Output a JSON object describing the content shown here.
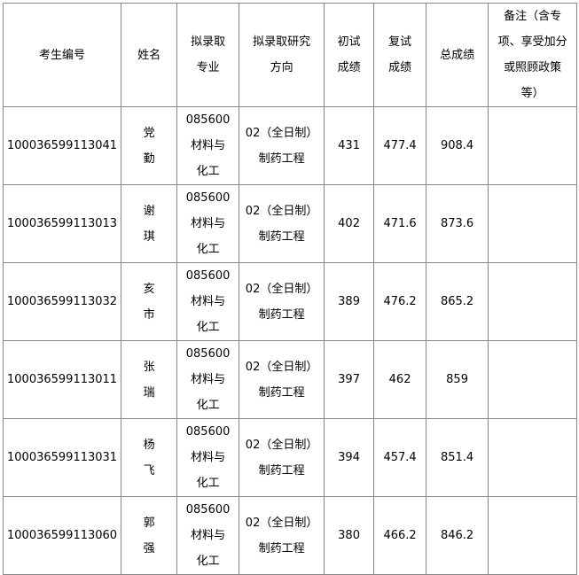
{
  "headers": [
    "考生编号",
    "姓名",
    "拟录取专业",
    "拟录取研究方向",
    "初试成绩",
    "复试成绩",
    "总成绩",
    "备注（含专项、享受加分或照顾政策等）"
  ],
  "headers_display": [
    "考生编号",
    "姓名",
    "拟录取\n专业",
    "拟录取研究\n方向",
    "初试\n成绩",
    "复试\n成绩",
    "总成绩",
    "备注（含专\n项、享受加分\n或照顾政策\n等）"
  ],
  "rows": [
    {
      "id": "100036599113041",
      "name": "党勤",
      "major": "085600\n材料与\n化工",
      "direction": "02（全日制）\n制药工程",
      "prelim": "431",
      "retest": "477.4",
      "total": "908.4",
      "note": ""
    },
    {
      "id": "100036599113013",
      "name": "谢琪",
      "major": "085600\n材料与\n化工",
      "direction": "02（全日制）\n制药工程",
      "prelim": "402",
      "retest": "471.6",
      "total": "873.6",
      "note": ""
    },
    {
      "id": "100036599113032",
      "name": "亥市",
      "major": "085600\n材料与\n化工",
      "direction": "02（全日制）\n制药工程",
      "prelim": "389",
      "retest": "476.2",
      "total": "865.2",
      "note": ""
    },
    {
      "id": "100036599113011",
      "name": "张瑞",
      "major": "085600\n材料与\n化工",
      "direction": "02（全日制）\n制药工程",
      "prelim": "397",
      "retest": "462",
      "total": "859",
      "note": ""
    },
    {
      "id": "100036599113031",
      "name": "杨飞",
      "major": "085600\n材料与\n化工",
      "direction": "02（全日制）\n制药工程",
      "prelim": "394",
      "retest": "457.4",
      "total": "851.4",
      "note": ""
    },
    {
      "id": "100036599113060",
      "name": "郭强",
      "major": "085600\n材料与\n化工",
      "direction": "02（全日制）\n制药工程",
      "prelim": "380",
      "retest": "466.2",
      "total": "846.2",
      "note": ""
    }
  ]
}
